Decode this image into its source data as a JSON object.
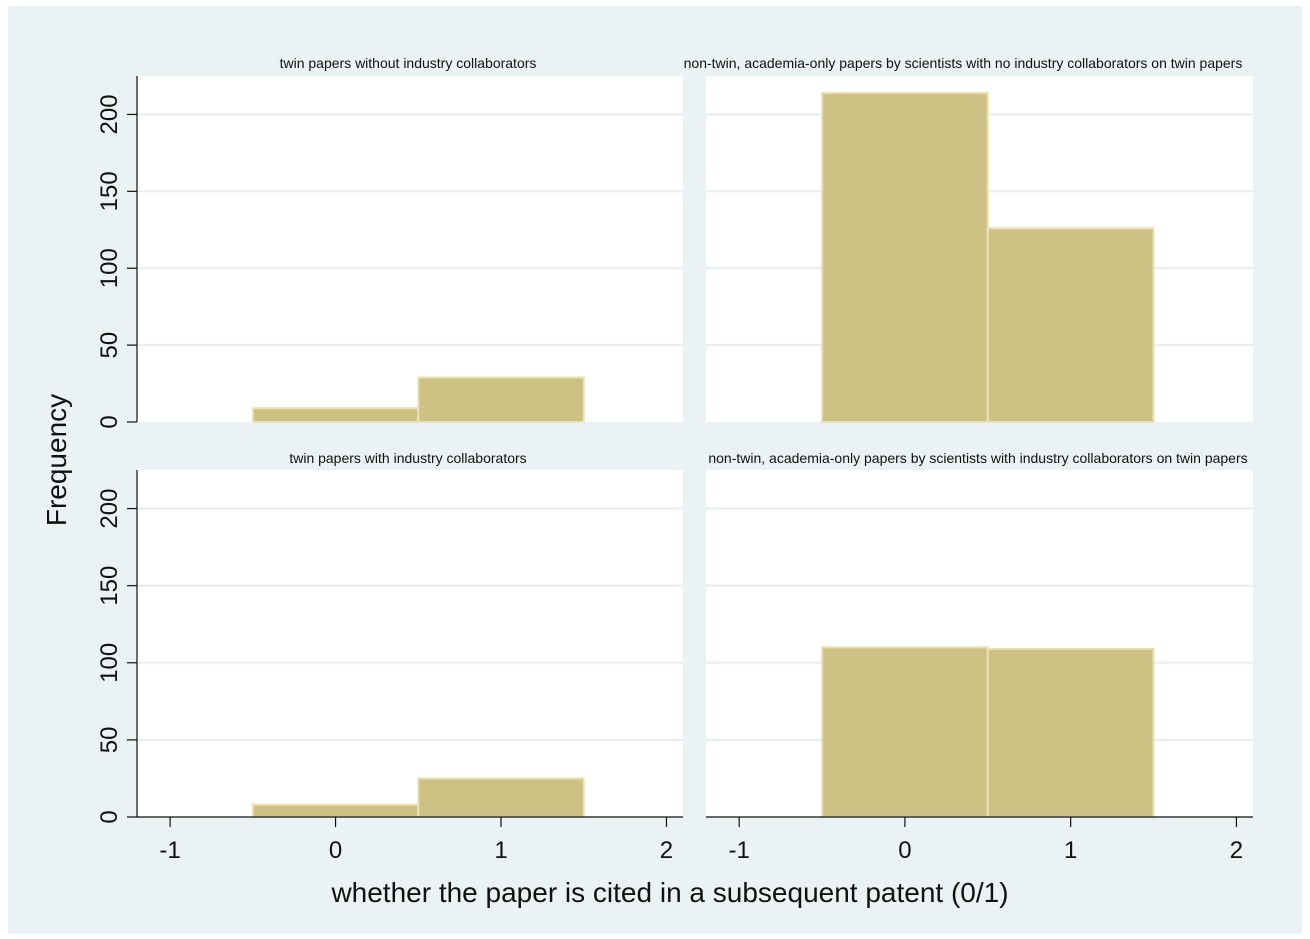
{
  "chart_data": {
    "type": "bar",
    "ylabel": "Frequency",
    "xlabel": "whether the paper is cited in a subsequent patent (0/1)",
    "xlim": [
      -1.2,
      2.1
    ],
    "ylim": [
      0,
      225
    ],
    "x_ticks": [
      "-1",
      "0",
      "1",
      "2"
    ],
    "x_tick_values": [
      -1,
      0,
      1,
      2
    ],
    "y_ticks": [
      "0",
      "50",
      "100",
      "150",
      "200"
    ],
    "y_tick_values": [
      0,
      50,
      100,
      150,
      200
    ],
    "bin_width": 1,
    "grid": true,
    "panels": [
      {
        "title": "twin papers without industry collaborators",
        "bins": [
          0,
          1
        ],
        "values": [
          9,
          29
        ]
      },
      {
        "title": "non-twin, academia-only papers by scientists with no industry collaborators on twin papers",
        "bins": [
          0,
          1
        ],
        "values": [
          214,
          126
        ]
      },
      {
        "title": "twin papers with industry collaborators",
        "bins": [
          0,
          1
        ],
        "values": [
          8,
          25
        ]
      },
      {
        "title": "non-twin, academia-only papers by scientists with industry collaborators on twin papers",
        "bins": [
          0,
          1
        ],
        "values": [
          110,
          109
        ]
      }
    ]
  },
  "colors": {
    "outer_background": "#eaf2f3",
    "plot_background": "#ffffff",
    "bar_fill": "#cdc283",
    "bar_edge": "#e9e2b8",
    "grid": "#e6eef2"
  }
}
